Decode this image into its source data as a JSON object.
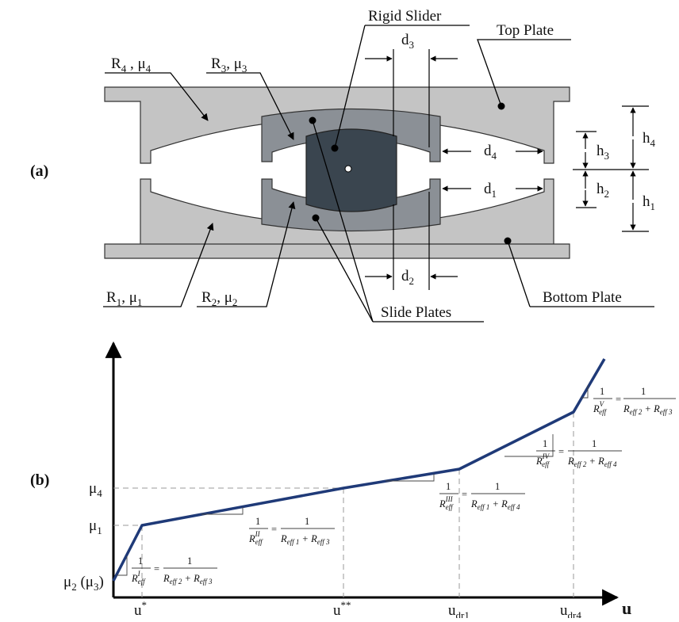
{
  "panel_a": {
    "label": "(a)",
    "callouts": {
      "r4_mu4": {
        "R": "R",
        "Rsub": "4",
        "sep": " , ",
        "mu": "μ",
        "musub": "4"
      },
      "r3_mu3": {
        "R": "R",
        "Rsub": "3",
        "sep": ", ",
        "mu": "μ",
        "musub": "3"
      },
      "r1_mu1": {
        "R": "R",
        "Rsub": "1",
        "sep": ", ",
        "mu": "μ",
        "musub": "1"
      },
      "r2_mu2": {
        "R": "R",
        "Rsub": "2",
        "sep": ", ",
        "mu": "μ",
        "musub": "2"
      },
      "rigid_slider": "Rigid Slider",
      "top_plate": "Top Plate",
      "bottom_plate": "Bottom Plate",
      "slide_plates": "Slide Plates"
    },
    "dimensions": {
      "d1": {
        "base": "d",
        "sub": "1"
      },
      "d2": {
        "base": "d",
        "sub": "2"
      },
      "d3": {
        "base": "d",
        "sub": "3"
      },
      "d4": {
        "base": "d",
        "sub": "4"
      },
      "h1": {
        "base": "h",
        "sub": "1"
      },
      "h2": {
        "base": "h",
        "sub": "2"
      },
      "h3": {
        "base": "h",
        "sub": "3"
      },
      "h4": {
        "base": "h",
        "sub": "4"
      }
    },
    "colors": {
      "plate_fill": "#c4c4c4",
      "slide_fill": "#8b9096",
      "slider_fill": "#3a454f",
      "stroke": "#333333"
    }
  },
  "panel_b": {
    "label": "(b)",
    "x_axis_label": "u",
    "y_ticks": {
      "mu4": {
        "base": "μ",
        "sub": "4"
      },
      "mu1": {
        "base": "μ",
        "sub": "1"
      },
      "mu2mu3": {
        "base": "μ",
        "sub": "2",
        "paren_base": " (μ",
        "paren_sub": "3",
        "paren_close": ")"
      }
    },
    "x_ticks": {
      "u_star": {
        "base": "u",
        "sup": "*"
      },
      "u_2star": {
        "base": "u",
        "sup": "**"
      },
      "u_dr1": {
        "base": "u",
        "sub": "dr1"
      },
      "u_dr4": {
        "base": "u",
        "sub": "dr4"
      }
    },
    "slopes": {
      "I": {
        "one": "1",
        "R": "R",
        "sup": "I",
        "sub": "eff",
        "eq": "=",
        "d1": "eff 2",
        "d2": "eff 3"
      },
      "II": {
        "one": "1",
        "R": "R",
        "sup": "II",
        "sub": "eff",
        "eq": "=",
        "d1": "eff 1",
        "d2": "eff 3"
      },
      "III": {
        "one": "1",
        "R": "R",
        "sup": "III",
        "sub": "eff",
        "eq": "=",
        "d1": "eff 1",
        "d2": "eff 4"
      },
      "IV": {
        "one": "1",
        "R": "R",
        "sup": "IV",
        "sub": "eff",
        "eq": "=",
        "d1": "eff 2",
        "d2": "eff 4"
      },
      "V": {
        "one": "1",
        "R": "R",
        "sup": "V",
        "sub": "eff",
        "eq": "=",
        "d1": "eff 2",
        "d2": "eff 3"
      }
    },
    "curve_color": "#1f3a78"
  }
}
